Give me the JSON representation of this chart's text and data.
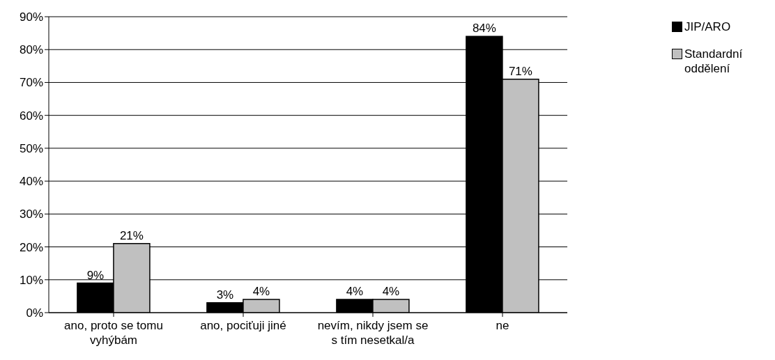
{
  "chart_data": {
    "type": "bar",
    "categories": [
      "ano, proto se tomu vyhýbám",
      "ano, pociťuji jiné",
      "nevím, nikdy jsem se s tím nesetkal/a",
      "ne"
    ],
    "series": [
      {
        "name": "JIP/ARO",
        "color": "#000000",
        "values": [
          9,
          3,
          4,
          84
        ],
        "value_labels": [
          "9%",
          "3%",
          "4%",
          "84%"
        ]
      },
      {
        "name": "Standardní oddělení",
        "color": "#c0c0c0",
        "values": [
          21,
          4,
          4,
          71
        ],
        "value_labels": [
          "21%",
          "4%",
          "4%",
          "71%"
        ]
      }
    ],
    "ylim": [
      0,
      90
    ],
    "yticks": [
      {
        "value": 0,
        "label": "0%"
      },
      {
        "value": 10,
        "label": "10%"
      },
      {
        "value": 20,
        "label": "20%"
      },
      {
        "value": 30,
        "label": "30%"
      },
      {
        "value": 40,
        "label": "40%"
      },
      {
        "value": 50,
        "label": "50%"
      },
      {
        "value": 60,
        "label": "60%"
      },
      {
        "value": 70,
        "label": "70%"
      },
      {
        "value": 80,
        "label": "80%"
      },
      {
        "value": 90,
        "label": "90%"
      }
    ],
    "grid": "y",
    "legend": "top right"
  }
}
